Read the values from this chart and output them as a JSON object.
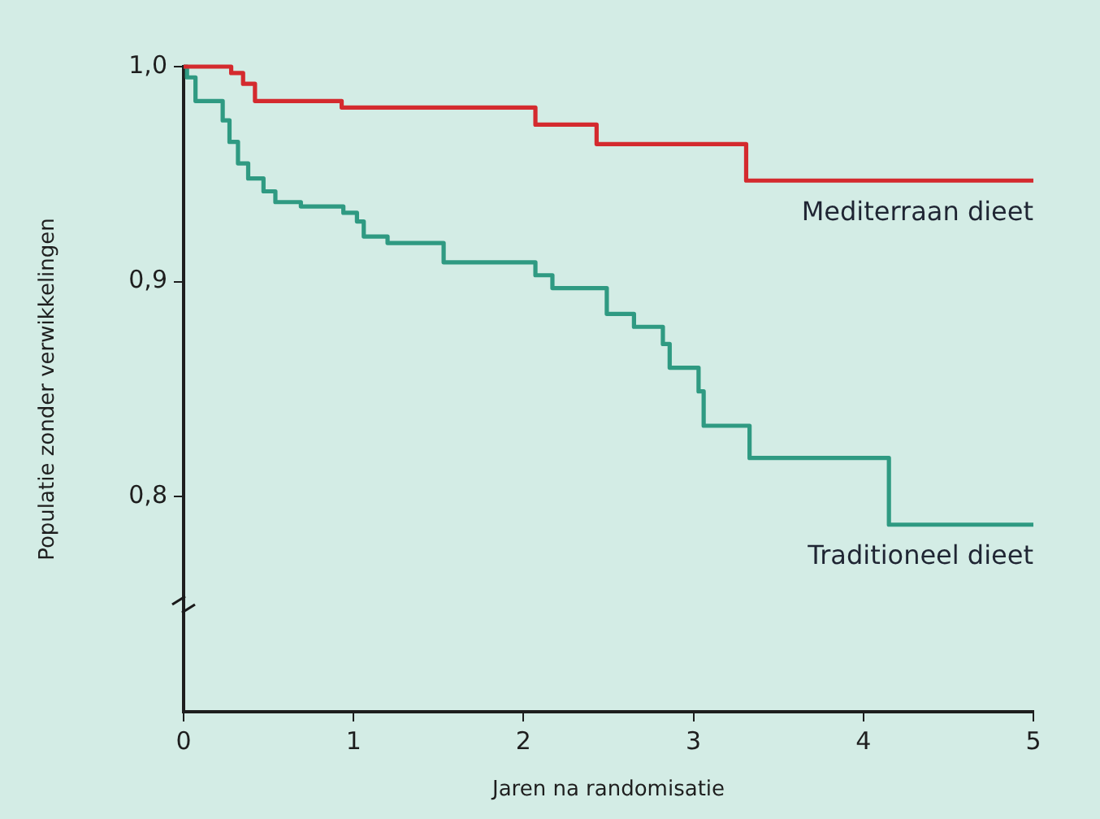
{
  "chart_data": {
    "type": "step",
    "xlabel": "Jaren na randomisatie",
    "ylabel": "Populatie zonder verwikkelingen",
    "xlim": [
      0,
      5
    ],
    "xticks": [
      0,
      1,
      2,
      3,
      4,
      5
    ],
    "ylim": [
      0.7,
      1.0
    ],
    "yticks": [
      {
        "value": 0.8,
        "label": "0,8"
      },
      {
        "value": 0.9,
        "label": "0,9"
      },
      {
        "value": 1.0,
        "label": "1,0"
      }
    ],
    "grid": false,
    "legend": false,
    "marker": "none",
    "line_style": "solid",
    "series": [
      {
        "name": "Mediterraan dieet",
        "color": "#d42a2e",
        "x": [
          0,
          0.28,
          0.35,
          0.42,
          0.93,
          2.07,
          2.43,
          3.31,
          5
        ],
        "values": [
          1.0,
          0.997,
          0.992,
          0.984,
          0.981,
          0.973,
          0.964,
          0.947,
          0.947
        ]
      },
      {
        "name": "Traditioneel dieet",
        "color": "#2f9a82",
        "x": [
          0,
          0.02,
          0.07,
          0.23,
          0.27,
          0.32,
          0.38,
          0.47,
          0.54,
          0.69,
          0.94,
          1.02,
          1.06,
          1.2,
          1.53,
          2.07,
          2.17,
          2.49,
          2.65,
          2.82,
          2.86,
          3.03,
          3.06,
          3.33,
          4.15,
          5
        ],
        "values": [
          1.0,
          0.995,
          0.984,
          0.975,
          0.965,
          0.955,
          0.948,
          0.942,
          0.937,
          0.935,
          0.932,
          0.928,
          0.921,
          0.918,
          0.909,
          0.903,
          0.897,
          0.885,
          0.879,
          0.871,
          0.86,
          0.849,
          0.833,
          0.818,
          0.787,
          0.787
        ]
      }
    ]
  }
}
